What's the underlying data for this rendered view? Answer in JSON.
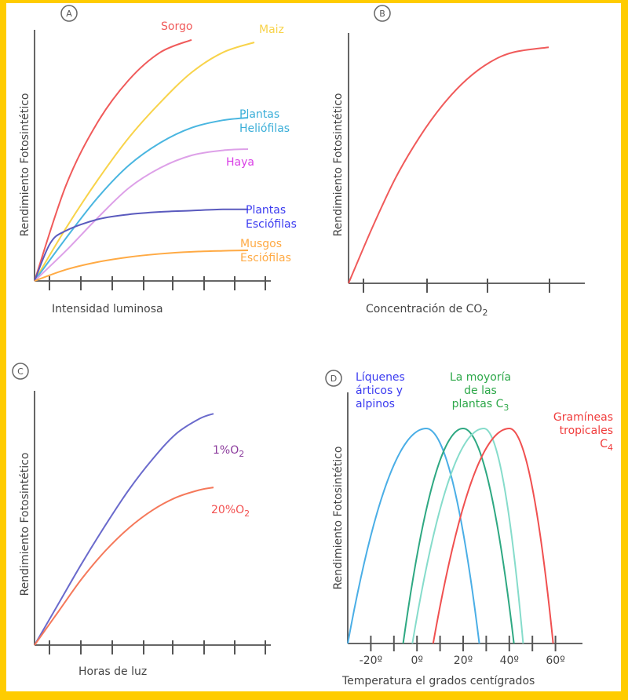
{
  "chart_data": [
    {
      "id": "A",
      "type": "line",
      "panel_label": "A",
      "title": "",
      "xlabel": "Intensidad luminosa",
      "ylabel": "Rendimiento Fotosintético",
      "xlim": [
        0,
        10
      ],
      "ylim": [
        0,
        100
      ],
      "x_ticks": 8,
      "grid": false,
      "series": [
        {
          "name": "Sorgo",
          "label_lines": [
            "Sorgo"
          ],
          "color": "#F05A5A",
          "x": [
            0,
            1,
            2,
            3,
            4,
            5
          ],
          "y": [
            0,
            38,
            63,
            80,
            91,
            96
          ]
        },
        {
          "name": "Maiz",
          "label_lines": [
            "Maiz"
          ],
          "color": "#F8D34A",
          "x": [
            0,
            1,
            2,
            3,
            4,
            5,
            6,
            7
          ],
          "y": [
            0,
            21,
            40,
            57,
            71,
            83,
            91,
            95
          ]
        },
        {
          "name": "Plantas Heliófilas",
          "label_lines": [
            "Plantas",
            "Heliófilas"
          ],
          "color": "#4AB6E0",
          "x": [
            0,
            1,
            2,
            3,
            4,
            5,
            6,
            6.8
          ],
          "y": [
            0,
            17,
            33,
            46,
            55,
            61,
            64,
            65
          ]
        },
        {
          "name": "Haya",
          "label_lines": [
            "Haya"
          ],
          "color": "#DDA0E8",
          "x": [
            0,
            1,
            2,
            3,
            4,
            5,
            6,
            6.8
          ],
          "y": [
            0,
            12,
            25,
            37,
            45,
            50,
            52,
            52.5
          ]
        },
        {
          "name": "Plantas Esciófilas",
          "label_lines": [
            "Plantas",
            "Esciófilas"
          ],
          "color": "#5A5ABE",
          "x": [
            0,
            0.5,
            1,
            2,
            3,
            4,
            5,
            6,
            6.8
          ],
          "y": [
            0,
            15,
            20,
            24.5,
            26.5,
            27.5,
            28,
            28.5,
            28.5
          ]
        },
        {
          "name": "Musgos Esciófilas",
          "label_lines": [
            "Musgos",
            "Esciófilas"
          ],
          "color": "#FFAA44",
          "x": [
            0,
            1,
            2,
            3,
            4,
            5,
            6,
            6.8
          ],
          "y": [
            0,
            4.5,
            7.5,
            9.5,
            10.8,
            11.6,
            12,
            12.2
          ]
        }
      ],
      "label_colors": {
        "Sorgo": "#F05A5A",
        "Maiz": "#F8D34A",
        "Plantas Heliófilas": "#3AAED8",
        "Haya": "#D93FE6",
        "Plantas Esciófilas": "#3B3BF0",
        "Musgos Esciófilas": "#FFAA44"
      }
    },
    {
      "id": "B",
      "type": "line",
      "panel_label": "B",
      "title": "",
      "xlabel": "Concentración de CO",
      "xlabel_sub": "2",
      "ylabel": "Rendimiento Fotosintético",
      "xlim": [
        0,
        10
      ],
      "ylim": [
        0,
        100
      ],
      "x_ticks": 4,
      "grid": false,
      "series": [
        {
          "name": "CO2",
          "color": "#F05A5A",
          "x": [
            0,
            1,
            2,
            3,
            4,
            5,
            6,
            7,
            8.5
          ],
          "y": [
            0,
            22,
            42,
            58,
            71,
            81,
            88,
            92,
            94
          ]
        }
      ]
    },
    {
      "id": "C",
      "type": "line",
      "panel_label": "C",
      "title": "",
      "xlabel": "Horas de luz",
      "ylabel": "Rendimiento Fotosintético",
      "xlim": [
        0,
        10
      ],
      "ylim": [
        0,
        100
      ],
      "x_ticks": 8,
      "grid": false,
      "series": [
        {
          "name": "1%O2",
          "label_main": "1%O",
          "label_sub": "2",
          "color": "#6A6ACC",
          "label_color": "#8B3A9C",
          "x": [
            0,
            1,
            2,
            3,
            4,
            5,
            6,
            7,
            7.6
          ],
          "y": [
            0,
            16,
            32,
            47,
            61,
            73,
            83,
            89,
            91
          ]
        },
        {
          "name": "20%O2",
          "label_main": "20%O",
          "label_sub": "2",
          "color": "#F5785A",
          "label_color": "#F25050",
          "x": [
            0,
            1,
            2,
            3,
            4,
            5,
            6,
            7,
            7.6
          ],
          "y": [
            0,
            13,
            26,
            37,
            46,
            53,
            58,
            61,
            62
          ]
        }
      ]
    },
    {
      "id": "D",
      "type": "line",
      "panel_label": "D",
      "title": "",
      "xlabel": "Temperatura el grados centígrados",
      "ylabel": "Rendimiento Fotosintético",
      "xlim": [
        -30,
        70
      ],
      "ylim": [
        0,
        100
      ],
      "x_tick_values": [
        -20,
        -10,
        0,
        10,
        20,
        30,
        40,
        50,
        60
      ],
      "x_tick_labels": [
        {
          "value": -20,
          "text": "-20º"
        },
        {
          "value": 0,
          "text": "0º"
        },
        {
          "value": 20,
          "text": "20º"
        },
        {
          "value": 40,
          "text": "40º"
        },
        {
          "value": 60,
          "text": "60º"
        }
      ],
      "grid": false,
      "series": [
        {
          "name": "Líquenes árticos y alpinos",
          "color": "#4AAEE6",
          "start": -30,
          "peak": 4,
          "end": 27,
          "peak_y": 100
        },
        {
          "name": "La moyoría de las plantas C3 (a)",
          "color": "#2EA882",
          "start": -6,
          "peak": 20,
          "end": 42,
          "peak_y": 100
        },
        {
          "name": "La moyoría de las plantas C3 (b)",
          "color": "#86DCCB",
          "start": -2,
          "peak": 29,
          "end": 46,
          "peak_y": 100
        },
        {
          "name": "Gramíneas tropicales C4",
          "color": "#F05050",
          "start": 7,
          "peak": 40,
          "end": 59,
          "peak_y": 100
        }
      ],
      "labels": [
        {
          "lines": [
            "Líquenes",
            "árticos y",
            "alpinos"
          ],
          "color": "#3B3BF0"
        },
        {
          "lines": [
            "La moyoría",
            "de las",
            "plantas C"
          ],
          "sub": "3",
          "color": "#2EA84A"
        },
        {
          "lines": [
            "Gramíneas",
            "tropicales",
            "C"
          ],
          "sub": "4",
          "color": "#F03C3C"
        }
      ]
    }
  ]
}
